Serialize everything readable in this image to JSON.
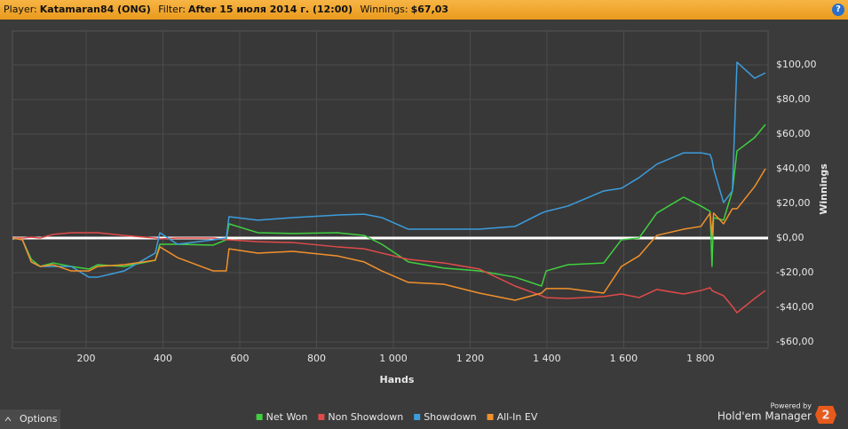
{
  "header": {
    "player_label": "Player:",
    "player": "Katamaran84 (ONG)",
    "filter_label": "Filter:",
    "filter": "After 15 июля 2014 г. (12:00)",
    "winnings_label": "Winnings:",
    "winnings": "$67,03",
    "help": "?"
  },
  "footer": {
    "options": "Options",
    "powered_by": "Powered by",
    "brand": "Hold'em Manager",
    "brand_badge": "2"
  },
  "chart_data": {
    "type": "line",
    "xlabel": "Hands",
    "ylabel": "Winnings",
    "grid": true,
    "legend": "bottom",
    "x": [
      8,
      34,
      57,
      80,
      114,
      161,
      207,
      230,
      299,
      380,
      392,
      438,
      531,
      565,
      572,
      647,
      739,
      854,
      924,
      970,
      1039,
      1132,
      1224,
      1317,
      1386,
      1398,
      1455,
      1548,
      1594,
      1640,
      1686,
      1756,
      1801,
      1825,
      1830,
      1834,
      1860,
      1883,
      1895,
      1941,
      1969
    ],
    "series": [
      {
        "name": "Net Won",
        "color": "#3fd03f",
        "values": [
          0,
          -1,
          -12.3,
          -16.4,
          -14.4,
          -16.4,
          -17.9,
          -15.4,
          -16.4,
          -12.8,
          -3.6,
          -3.6,
          -4.1,
          -1,
          8.2,
          3.1,
          2.6,
          3.1,
          1.5,
          -3.6,
          -13.8,
          -17.4,
          -19,
          -22.6,
          -27.7,
          -19,
          -15.4,
          -14.4,
          -1,
          0,
          14.4,
          23.6,
          18.5,
          15.4,
          -16.4,
          11.8,
          10.3,
          27.2,
          50.3,
          58,
          65.6
        ]
      },
      {
        "name": "Non Showdown",
        "color": "#e24a4a",
        "values": [
          0,
          0,
          0.5,
          0,
          2.1,
          3.1,
          3.1,
          3.1,
          1.5,
          0,
          -0.5,
          0,
          0,
          -1,
          -1,
          -2.1,
          -2.6,
          -5.1,
          -6.2,
          -8.7,
          -12.3,
          -14.4,
          -17.9,
          -27.7,
          -33.3,
          -34.4,
          -34.9,
          -33.8,
          -32.3,
          -34.4,
          -29.7,
          -32.3,
          -30.3,
          -28.7,
          -30.3,
          -30.8,
          -33.3,
          -39.5,
          -43.1,
          -34.9,
          -30.3
        ]
      },
      {
        "name": "Showdown",
        "color": "#3c9ddc",
        "values": [
          0,
          -1,
          -13.8,
          -16.4,
          -16.4,
          -16.4,
          -22.6,
          -22.6,
          -19,
          -8.7,
          3.1,
          -3.6,
          -1,
          0,
          12.3,
          10.3,
          11.8,
          13.3,
          13.8,
          11.8,
          5.1,
          5.1,
          5.1,
          6.7,
          14.4,
          15.4,
          18.5,
          27.2,
          28.7,
          34.9,
          42.6,
          49.2,
          49.2,
          48.2,
          45.1,
          40,
          20.5,
          27.2,
          101.5,
          92.3,
          95.4
        ]
      },
      {
        "name": "All-In EV",
        "color": "#f2912b",
        "values": [
          0,
          -1,
          -13.8,
          -16.4,
          -15.4,
          -19,
          -19,
          -16.4,
          -15.4,
          -12.8,
          -5.1,
          -11.3,
          -19,
          -19,
          -6.2,
          -8.7,
          -7.7,
          -10.3,
          -13.8,
          -19,
          -25.6,
          -26.7,
          -31.8,
          -35.9,
          -31.8,
          -29.2,
          -29.2,
          -31.8,
          -16.4,
          -10.3,
          1.5,
          5.1,
          6.7,
          14.4,
          1.5,
          14.4,
          8.2,
          16.9,
          16.9,
          29.7,
          40
        ]
      }
    ],
    "xlim": [
      8,
      1976
    ],
    "xticks": [
      200,
      400,
      600,
      800,
      {
        "value": 1000,
        "label": "1 000"
      },
      {
        "value": 1200,
        "label": "1 200"
      },
      {
        "value": 1400,
        "label": "1 400"
      },
      {
        "value": 1600,
        "label": "1 600"
      },
      {
        "value": 1800,
        "label": "1 800"
      }
    ],
    "ylim": [
      -63.6,
      119.5
    ],
    "yticks": [
      {
        "value": -60,
        "label": "-$60,00"
      },
      {
        "value": -40,
        "label": "-$40,00"
      },
      {
        "value": -20,
        "label": "-$20,00"
      },
      {
        "value": 0,
        "label": "$0,00"
      },
      {
        "value": 20,
        "label": "$20,00"
      },
      {
        "value": 40,
        "label": "$40,00"
      },
      {
        "value": 60,
        "label": "$60,00"
      },
      {
        "value": 80,
        "label": "$80,00"
      },
      {
        "value": 100,
        "label": "$100,00"
      }
    ]
  }
}
